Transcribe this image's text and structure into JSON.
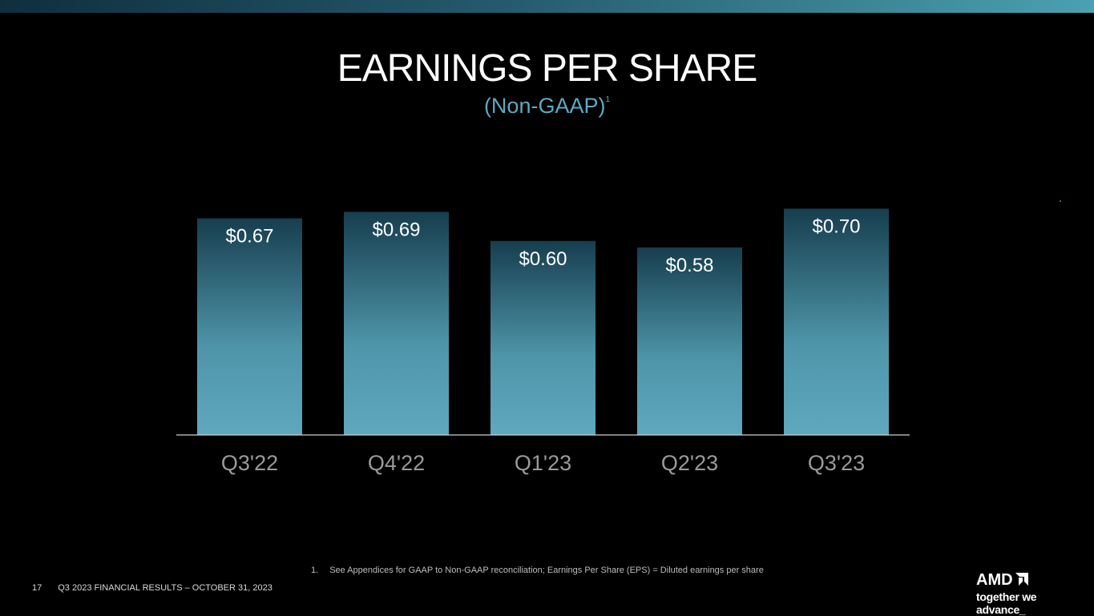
{
  "slide": {
    "title": "EARNINGS PER SHARE",
    "subtitle": "(Non-GAAP)",
    "subtitle_note": "1",
    "footnote_number": "1.",
    "footnote_text": "See Appendices for GAAP to Non-GAAP reconciliation; Earnings Per Share (EPS) = Diluted earnings per share",
    "page_number": "17",
    "footer_text": "Q3 2023 FINANCIAL RESULTS – OCTOBER 31, 2023",
    "logo_text": "AMD",
    "logo_tagline": "together we advance_"
  },
  "colors": {
    "background": "#000000",
    "bar_top": "#163e4e",
    "bar_bottom": "#5fa8be",
    "subtitle": "#5fa8c2",
    "axis_line": "#d0d0d0"
  },
  "chart_data": {
    "type": "bar",
    "title": "EARNINGS PER SHARE",
    "subtitle": "(Non-GAAP)",
    "categories": [
      "Q3'22",
      "Q4'22",
      "Q1'23",
      "Q2'23",
      "Q3'23"
    ],
    "values": [
      0.67,
      0.69,
      0.6,
      0.58,
      0.7
    ],
    "value_labels": [
      "$0.67",
      "$0.69",
      "$0.60",
      "$0.58",
      "$0.70"
    ],
    "xlabel": "",
    "ylabel": "",
    "ylim": [
      0,
      0.82
    ],
    "grid": false,
    "legend": "none"
  }
}
